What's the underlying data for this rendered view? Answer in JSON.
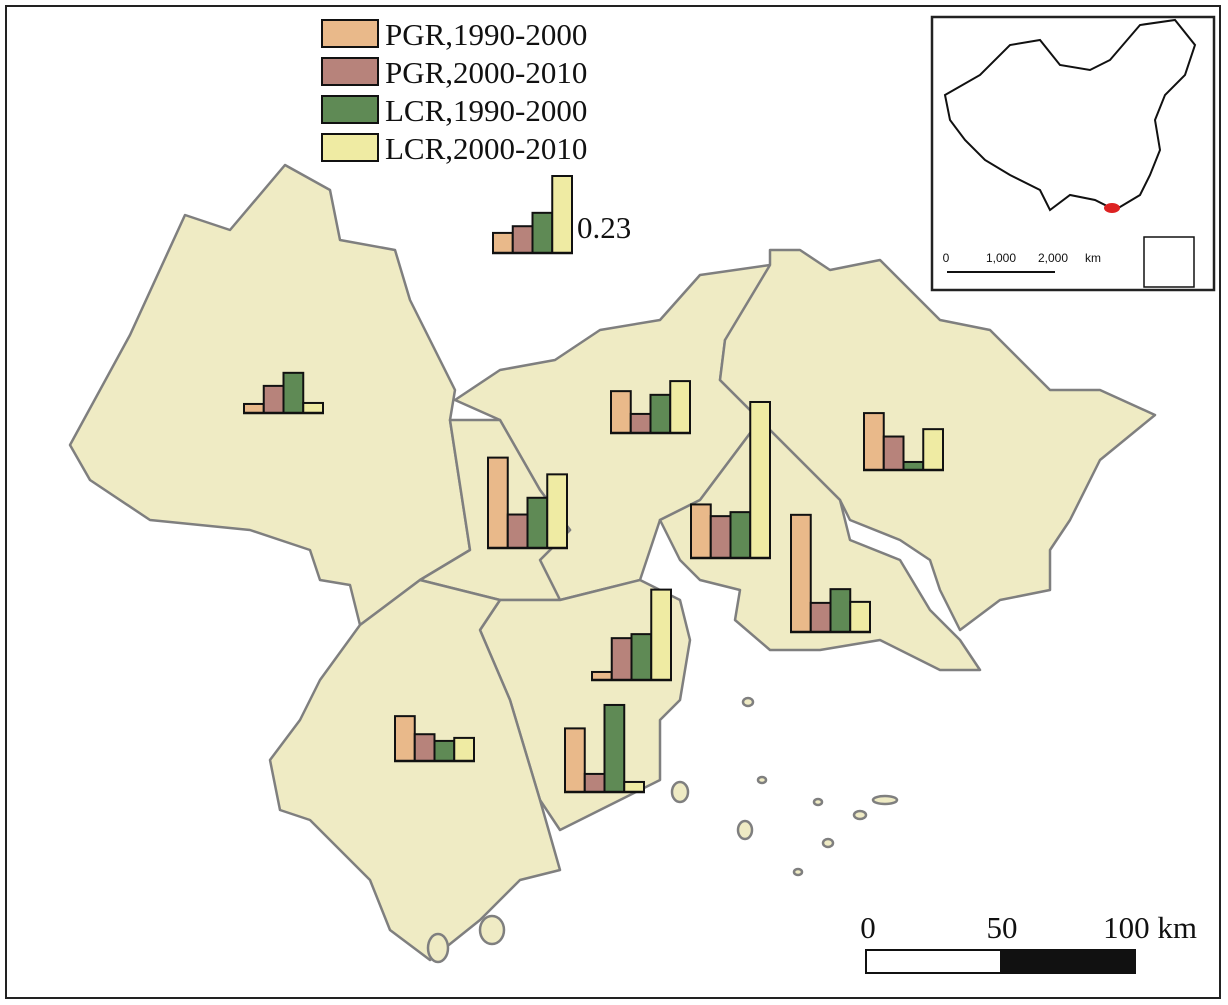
{
  "chart_data": {
    "type": "map-bars",
    "series": [
      {
        "name": "PGR,1990-2000",
        "color": "#e9b98a"
      },
      {
        "name": "PGR,2000-2010",
        "color": "#b7837b"
      },
      {
        "name": "LCR,1990-2000",
        "color": "#5f8a55"
      },
      {
        "name": "LCR,2000-2010",
        "color": "#efeba3"
      }
    ],
    "key_bars": {
      "values": [
        0.06,
        0.08,
        0.12,
        0.23
      ]
    },
    "charts": [
      {
        "values": [
          0.027,
          0.081,
          0.12,
          0.03
        ]
      },
      {
        "values": [
          0.125,
          0.057,
          0.114,
          0.155
        ]
      },
      {
        "values": [
          0.17,
          0.1,
          0.024,
          0.122
        ]
      },
      {
        "values": [
          0.27,
          0.1,
          0.15,
          0.22
        ]
      },
      {
        "values": [
          0.16,
          0.125,
          0.137,
          0.466
        ]
      },
      {
        "values": [
          0.35,
          0.087,
          0.128,
          0.09
        ]
      },
      {
        "values": [
          0.024,
          0.125,
          0.137,
          0.27
        ]
      },
      {
        "values": [
          0.134,
          0.08,
          0.06,
          0.069
        ]
      },
      {
        "values": [
          0.19,
          0.054,
          0.26,
          0.03
        ]
      }
    ],
    "scale_bar": {
      "labels": [
        "0",
        "50",
        "100 km"
      ]
    },
    "inset_scale": {
      "labels": [
        "0",
        "1,000",
        "2,000",
        "km"
      ]
    }
  }
}
